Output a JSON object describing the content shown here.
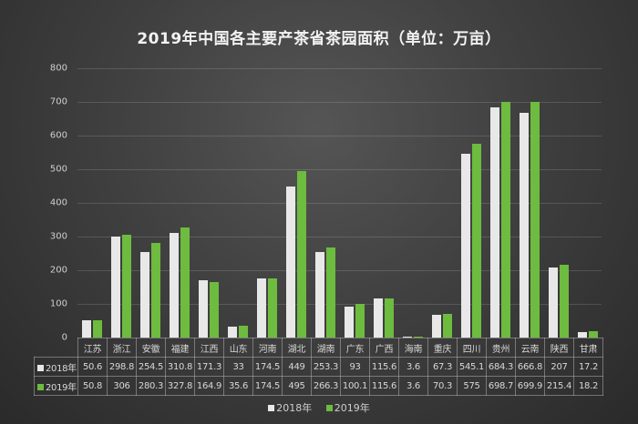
{
  "chart_data": {
    "type": "bar",
    "title": "2019年中国各主要产茶省茶园面积（单位：万亩）",
    "xlabel": "",
    "ylabel": "",
    "ylim": [
      0,
      800
    ],
    "yticks": [
      0,
      100,
      200,
      300,
      400,
      500,
      600,
      700,
      800
    ],
    "grid": true,
    "legend_position": "bottom",
    "data_table": true,
    "categories": [
      "江苏",
      "浙江",
      "安徽",
      "福建",
      "江西",
      "山东",
      "河南",
      "湖北",
      "湖南",
      "广东",
      "广西",
      "海南",
      "重庆",
      "四川",
      "贵州",
      "云南",
      "陕西",
      "甘肃"
    ],
    "series": [
      {
        "name": "2018年",
        "color": "#e8e8e8",
        "values": [
          50.6,
          298.8,
          254.5,
          310.8,
          171.3,
          33,
          174.5,
          449,
          253.3,
          93,
          115.6,
          3.6,
          67.3,
          545.1,
          684.3,
          666.8,
          207,
          17.2
        ]
      },
      {
        "name": "2019年",
        "color": "#6dbb3f",
        "values": [
          50.8,
          306,
          280.3,
          327.8,
          164.9,
          35.6,
          174.5,
          495,
          266.3,
          100.1,
          115.6,
          3.6,
          70.3,
          575,
          698.7,
          699.9,
          215.4,
          18.2
        ]
      }
    ]
  },
  "labels": {
    "series_2018": "2018年",
    "series_2019": "2019年"
  }
}
